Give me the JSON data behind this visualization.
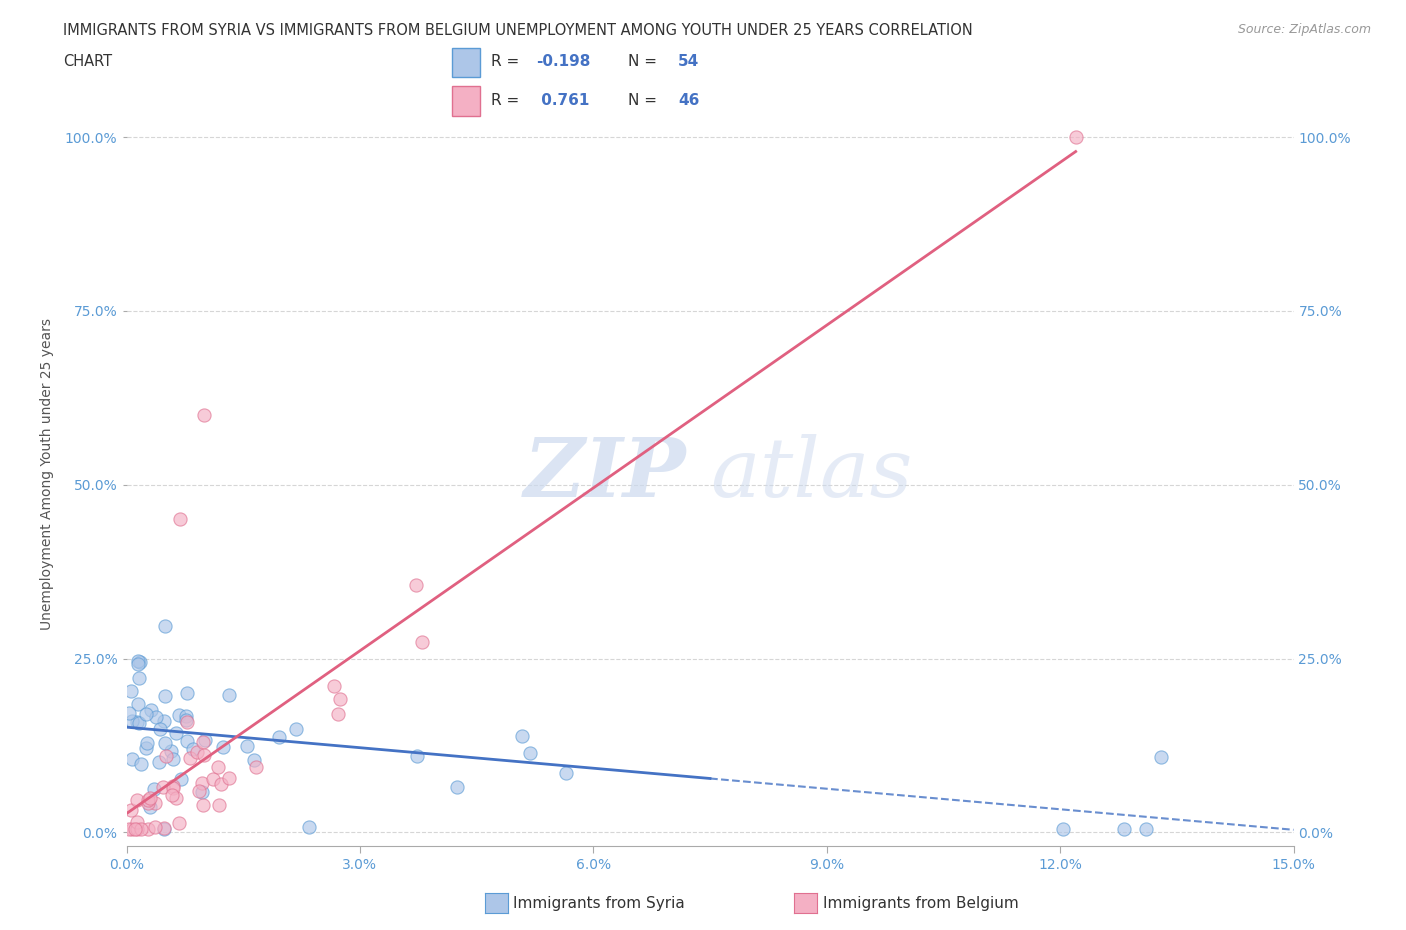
{
  "title_line1": "IMMIGRANTS FROM SYRIA VS IMMIGRANTS FROM BELGIUM UNEMPLOYMENT AMONG YOUTH UNDER 25 YEARS CORRELATION",
  "title_line2": "CHART",
  "source": "Source: ZipAtlas.com",
  "ylabel": "Unemployment Among Youth under 25 years",
  "xlim": [
    0.0,
    0.15
  ],
  "ylim": [
    -0.02,
    1.05
  ],
  "xticks": [
    0.0,
    0.03,
    0.06,
    0.09,
    0.12,
    0.15
  ],
  "xtick_labels": [
    "0.0%",
    "3.0%",
    "6.0%",
    "9.0%",
    "12.0%",
    "15.0%"
  ],
  "ytick_vals": [
    0.0,
    0.25,
    0.5,
    0.75,
    1.0
  ],
  "ytick_labels": [
    "0.0%",
    "25.0%",
    "50.0%",
    "75.0%",
    "100.0%"
  ],
  "syria_color": "#adc6e8",
  "syria_edge": "#5b9bd5",
  "syria_line_color": "#4472c4",
  "belgium_color": "#f4b0c4",
  "belgium_edge": "#e07090",
  "belgium_line_color": "#e06080",
  "syria_R": -0.198,
  "syria_N": 54,
  "belgium_R": 0.761,
  "belgium_N": 46,
  "legend_label_syria": "Immigrants from Syria",
  "legend_label_belgium": "Immigrants from Belgium",
  "watermark_zip": "ZIP",
  "watermark_atlas": "atlas",
  "background_color": "#ffffff",
  "grid_color": "#cccccc",
  "axis_color": "#5b9bd5",
  "title_color": "#333333"
}
